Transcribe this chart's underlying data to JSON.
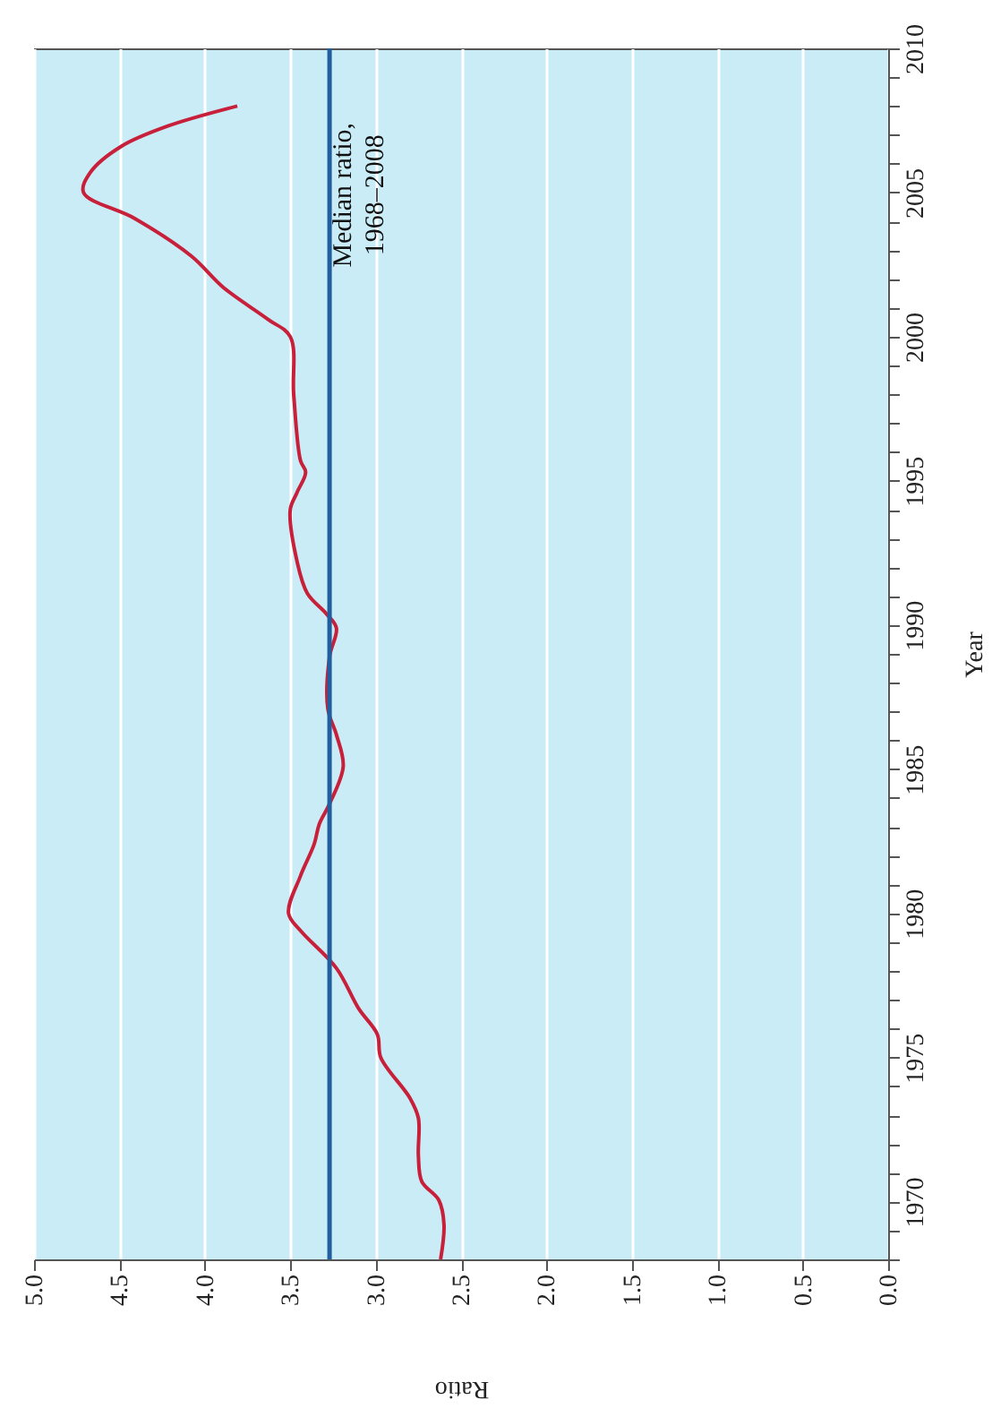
{
  "chart_data": {
    "type": "line",
    "xlabel": "Ratio",
    "ylabel": "Year",
    "series": [
      {
        "color": "#c8203a",
        "x": [
          2.62,
          2.6,
          2.63,
          2.73,
          2.75,
          2.75,
          2.8,
          2.97,
          2.99,
          3.1,
          3.23,
          3.44,
          3.51,
          3.44,
          3.36,
          3.33,
          3.27,
          3.19,
          3.23,
          3.28,
          3.27,
          3.23,
          3.29,
          3.4,
          3.46,
          3.5,
          3.46,
          3.41,
          3.44,
          3.48,
          3.5,
          3.63,
          3.89,
          4.08,
          4.41,
          4.71,
          4.67,
          4.49,
          4.22,
          3.81
        ],
        "values": [
          1968,
          1969.2,
          1970.05,
          1970.7,
          1971.6,
          1972.9,
          1973.6,
          1975.0,
          1975.8,
          1976.7,
          1978.1,
          1979.4,
          1980.0,
          1981.3,
          1982.4,
          1983.1,
          1983.8,
          1985.1,
          1986.2,
          1987.1,
          1988.9,
          1989.9,
          1990.4,
          1991.1,
          1992.2,
          1994.0,
          1994.6,
          1995.3,
          1995.7,
          1998.0,
          2000.0,
          2000.6,
          2001.7,
          2002.8,
          2004.1,
          2005.0,
          2005.7,
          2006.6,
          2007.3,
          2008.0
        ]
      }
    ],
    "ylim": [
      1968,
      2010
    ],
    "yticks": [
      {
        "value": 1968,
        "label": null
      },
      {
        "value": 1969,
        "label": null
      },
      1970,
      {
        "value": 1971,
        "label": null
      },
      {
        "value": 1972,
        "label": null
      },
      {
        "value": 1973,
        "label": null
      },
      {
        "value": 1974,
        "label": null
      },
      1975,
      {
        "value": 1976,
        "label": null
      },
      {
        "value": 1977,
        "label": null
      },
      {
        "value": 1978,
        "label": null
      },
      {
        "value": 1979,
        "label": null
      },
      1980,
      {
        "value": 1981,
        "label": null
      },
      {
        "value": 1982,
        "label": null
      },
      {
        "value": 1983,
        "label": null
      },
      {
        "value": 1984,
        "label": null
      },
      1985,
      {
        "value": 1986,
        "label": null
      },
      {
        "value": 1987,
        "label": null
      },
      {
        "value": 1988,
        "label": null
      },
      {
        "value": 1989,
        "label": null
      },
      1990,
      {
        "value": 1991,
        "label": null
      },
      {
        "value": 1992,
        "label": null
      },
      {
        "value": 1993,
        "label": null
      },
      {
        "value": 1994,
        "label": null
      },
      1995,
      {
        "value": 1996,
        "label": null
      },
      {
        "value": 1997,
        "label": null
      },
      {
        "value": 1998,
        "label": null
      },
      {
        "value": 1999,
        "label": null
      },
      2000,
      {
        "value": 2001,
        "label": null
      },
      {
        "value": 2002,
        "label": null
      },
      {
        "value": 2003,
        "label": null
      },
      {
        "value": 2004,
        "label": null
      },
      2005,
      {
        "value": 2006,
        "label": null
      },
      {
        "value": 2007,
        "label": null
      },
      {
        "value": 2008,
        "label": null
      },
      {
        "value": 2009,
        "label": null
      },
      2010
    ],
    "xlim": [
      5,
      0
    ],
    "xticks": [
      {
        "value": 5,
        "label": "5.0"
      },
      {
        "value": 4.5,
        "label": "4.5"
      },
      {
        "value": 4,
        "label": "4.0"
      },
      {
        "value": 3.5,
        "label": "3.5"
      },
      {
        "value": 3,
        "label": "3.0"
      },
      {
        "value": 2.5,
        "label": "2.5"
      },
      {
        "value": 2,
        "label": "2.0"
      },
      {
        "value": 1.5,
        "label": "1.5"
      },
      {
        "value": 1,
        "label": "1.0"
      },
      {
        "value": 0.5,
        "label": "0.5"
      },
      {
        "value": 0,
        "label": "0.0"
      }
    ],
    "grid": "x",
    "ref_lines": [
      {
        "axis": "x",
        "value": 3.27,
        "label": "Median ratio,\n1968–2008",
        "color": "#1f5fa0"
      }
    ]
  }
}
